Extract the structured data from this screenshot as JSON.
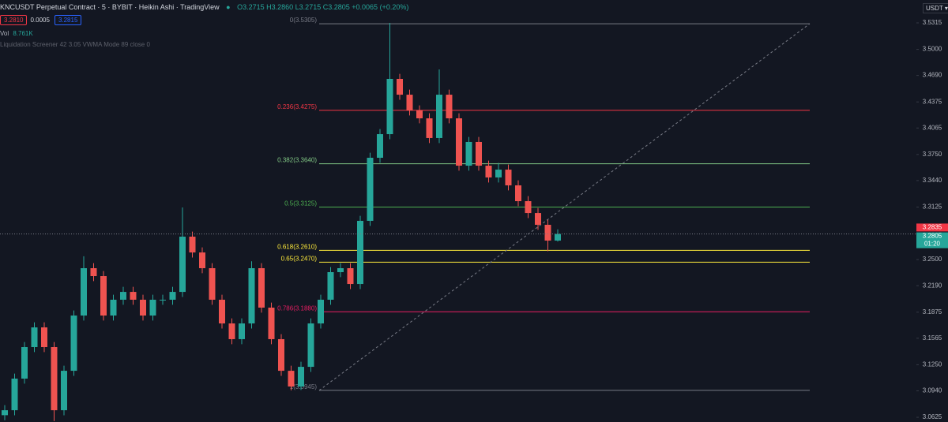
{
  "header": {
    "symbol": "KNCUSDT Perpetual Contract · 5 · BYBIT · Heikin Ashi · TradingView",
    "o": "O3.2715",
    "h": "H3.2860",
    "l": "L3.2715",
    "c": "C3.2805",
    "change": "+0.0065 (+0.20%)",
    "sell": "3.2810",
    "spread": "0.0005",
    "buy": "3.2815",
    "vol_label": "Vol",
    "vol_value": "8.761K",
    "indicator": "Liquidation Screener 42 3.05 VWMA Mode 89 close 0",
    "currency": "USDT"
  },
  "chart_data": {
    "type": "candlestick",
    "up_color": "#26a69a",
    "down_color": "#ef5350",
    "open": [
      3.065,
      3.0709,
      3.1085,
      3.146,
      3.1694,
      3.146,
      3.0709,
      3.1178,
      3.1835,
      3.2398,
      3.2304,
      3.1835,
      3.2023,
      3.2116,
      3.2023,
      3.1835,
      3.2023,
      3.2023,
      3.2116,
      3.2773,
      3.2585,
      3.2398,
      3.2023,
      3.1741,
      3.1554,
      3.1741,
      3.2398,
      3.1929,
      3.1554,
      3.1178,
      3.0991,
      3.1225,
      3.1741,
      3.2023,
      3.2351,
      3.2398,
      3.221,
      3.2961,
      3.3711,
      3.3992,
      3.4649,
      3.4461,
      3.4274,
      3.418,
      3.3946,
      3.4461,
      3.418,
      3.3617,
      3.3899,
      3.3617,
      3.3477,
      3.357,
      3.3383,
      3.3195,
      3.3054,
      3.2914,
      3.2726
    ],
    "high": [
      3.0769,
      3.1145,
      3.152,
      3.1754,
      3.1754,
      3.152,
      3.1238,
      3.1895,
      3.254,
      3.2458,
      3.2364,
      3.2083,
      3.2176,
      3.2176,
      3.2083,
      3.2083,
      3.2083,
      3.2176,
      3.312,
      3.2833,
      3.2645,
      3.2458,
      3.2083,
      3.1801,
      3.1801,
      3.248,
      3.2458,
      3.1989,
      3.1614,
      3.1238,
      3.1285,
      3.1801,
      3.2083,
      3.2411,
      3.2458,
      3.2458,
      3.3021,
      3.3771,
      3.4052,
      3.5315,
      3.4709,
      3.4521,
      3.4334,
      3.424,
      3.4762,
      3.4521,
      3.424,
      3.3959,
      3.3959,
      3.3677,
      3.365,
      3.363,
      3.3443,
      3.3255,
      3.3114,
      3.2974,
      3.286
    ],
    "low": [
      3.059,
      3.0649,
      3.1025,
      3.14,
      3.14,
      3.058,
      3.0649,
      3.1118,
      3.1775,
      3.2244,
      3.1775,
      3.1775,
      3.1963,
      3.1963,
      3.1775,
      3.1775,
      3.1963,
      3.1963,
      3.2056,
      3.2525,
      3.2338,
      3.1963,
      3.1681,
      3.1494,
      3.1494,
      3.1681,
      3.1869,
      3.1494,
      3.1118,
      3.0945,
      3.095,
      3.1165,
      3.1681,
      3.1963,
      3.2291,
      3.215,
      3.215,
      3.2901,
      3.3651,
      3.3932,
      3.4401,
      3.4214,
      3.412,
      3.3886,
      3.3886,
      3.412,
      3.3557,
      3.3557,
      3.3557,
      3.3417,
      3.3417,
      3.3323,
      3.3135,
      3.2994,
      3.2854,
      3.26,
      3.2715
    ],
    "close": [
      3.0709,
      3.1085,
      3.146,
      3.1694,
      3.146,
      3.0709,
      3.1178,
      3.1835,
      3.2398,
      3.2304,
      3.1835,
      3.2023,
      3.2116,
      3.2023,
      3.1835,
      3.2023,
      3.2023,
      3.2116,
      3.2773,
      3.2585,
      3.2398,
      3.2023,
      3.1741,
      3.1554,
      3.1741,
      3.2398,
      3.1929,
      3.1554,
      3.1178,
      3.0991,
      3.1225,
      3.1741,
      3.2023,
      3.2351,
      3.2398,
      3.221,
      3.2961,
      3.3711,
      3.3992,
      3.4649,
      3.4461,
      3.4274,
      3.418,
      3.3946,
      3.4461,
      3.418,
      3.3617,
      3.3899,
      3.3617,
      3.3477,
      3.357,
      3.3383,
      3.3195,
      3.3054,
      3.2914,
      3.2726,
      3.2805
    ],
    "ylim": [
      3.0569,
      3.5587
    ],
    "yticks": [
      3.5315,
      {
        "value": 3.5,
        "label": "3.5000"
      },
      {
        "value": 3.469,
        "label": "3.4690"
      },
      3.4375,
      3.4065,
      {
        "value": 3.375,
        "label": "3.3750"
      },
      {
        "value": 3.344,
        "label": "3.3440"
      },
      3.3125,
      {
        "value": 3.25,
        "label": "3.2500"
      },
      {
        "value": 3.219,
        "label": "3.2190"
      },
      3.1875,
      3.1565,
      {
        "value": 3.125,
        "label": "3.1250"
      },
      {
        "value": 3.094,
        "label": "3.0940"
      },
      3.0625
    ],
    "fib": [
      {
        "label": "0(3.5305)",
        "value": 3.5305,
        "color": "#787b86"
      },
      {
        "label": "0.236(3.4275)",
        "value": 3.4275,
        "color": "#f23645"
      },
      {
        "label": "0.382(3.3640)",
        "value": 3.364,
        "color": "#81c784"
      },
      {
        "label": "0.5(3.3125)",
        "value": 3.3125,
        "color": "#4caf50"
      },
      {
        "label": "0.618(3.2610)",
        "value": 3.261,
        "color": "#ffeb3b"
      },
      {
        "label": "0.65(3.2470)",
        "value": 3.247,
        "color": "#ffeb3b"
      },
      {
        "label": "0.786(3.1880)",
        "value": 3.188,
        "color": "#e91e63"
      },
      {
        "label": "1(3.0945)",
        "value": 3.0945,
        "color": "#787b86"
      }
    ],
    "price_labels": [
      {
        "value": 3.2835,
        "color": "#f23645"
      },
      {
        "value": 3.2805,
        "color": "#26a69a",
        "countdown": "01:20"
      }
    ]
  }
}
